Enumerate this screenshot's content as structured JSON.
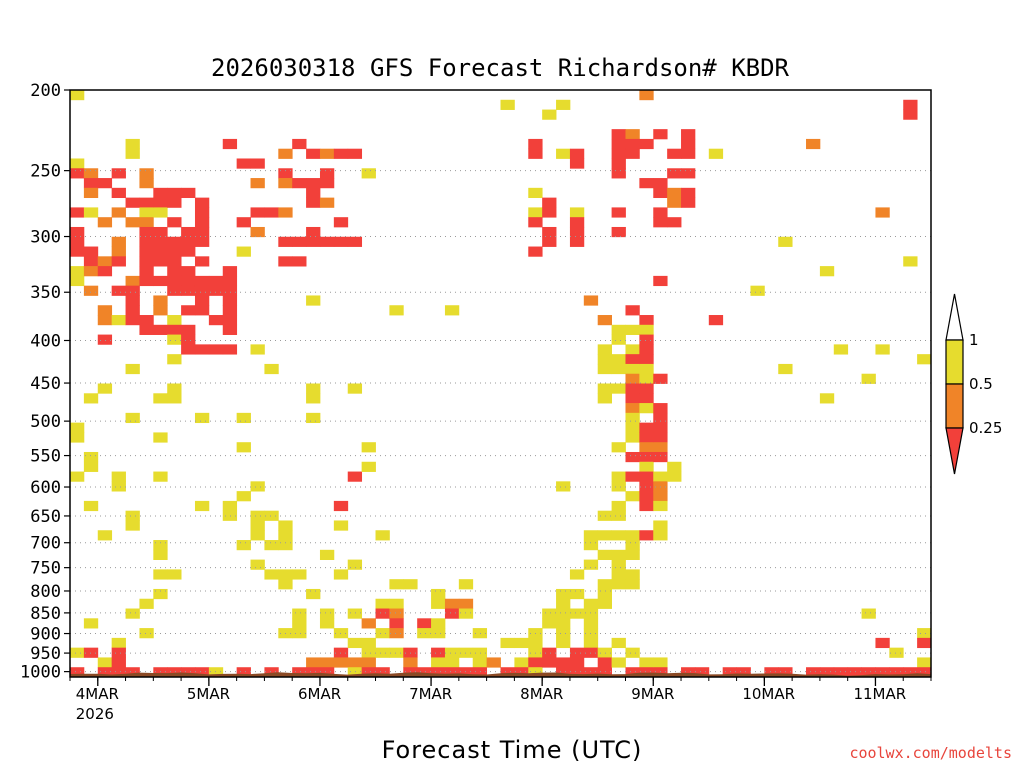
{
  "chart_data": {
    "type": "heatmap",
    "title": "2026030318 GFS Forecast Richardson# KBDR",
    "xlabel": "Forecast Time (UTC)",
    "ylabel": "",
    "credit": "coolwx.com/modelts",
    "x_ticks": [
      {
        "label": "4MAR",
        "sub": "2026",
        "t": 6
      },
      {
        "label": "5MAR",
        "sub": "",
        "t": 30
      },
      {
        "label": "6MAR",
        "sub": "",
        "t": 54
      },
      {
        "label": "7MAR",
        "sub": "",
        "t": 78
      },
      {
        "label": "8MAR",
        "sub": "",
        "t": 102
      },
      {
        "label": "9MAR",
        "sub": "",
        "t": 126
      },
      {
        "label": "10MAR",
        "sub": "",
        "t": 150
      },
      {
        "label": "11MAR",
        "sub": "",
        "t": 174
      }
    ],
    "xlim": [
      0,
      186
    ],
    "y_ticks": [
      200,
      250,
      300,
      350,
      400,
      450,
      500,
      550,
      600,
      650,
      700,
      750,
      800,
      850,
      900,
      950,
      1000
    ],
    "ylim_hpa": [
      200,
      1015
    ],
    "y_scale": "log-pressure",
    "colors": {
      "low": "#f2403a",
      "mid": "#f08428",
      "high": "#e6dc2e",
      "ground": "#8b4a25"
    },
    "legend": {
      "levels": [
        "1",
        "0.5",
        "0.25"
      ],
      "bins": [
        {
          "label": "> 1",
          "color": "#ffffff"
        },
        {
          "label": "0.5 - 1",
          "color": "#e6dc2e"
        },
        {
          "label": "0.25 - 0.5",
          "color": "#f08428"
        },
        {
          "label": "< 0.25",
          "color": "#f2403a"
        }
      ]
    },
    "regions": [
      {
        "cat": "high",
        "t": [
          0,
          24
        ],
        "p": [
          200,
          980
        ],
        "d": 0.22
      },
      {
        "cat": "mid",
        "t": [
          0,
          22
        ],
        "p": [
          250,
          400
        ],
        "d": 0.32
      },
      {
        "cat": "low",
        "t": [
          0,
          22
        ],
        "p": [
          250,
          400
        ],
        "d": 0.3
      },
      {
        "cat": "low",
        "t": [
          16,
          30
        ],
        "p": [
          265,
          350
        ],
        "d": 0.7
      },
      {
        "cat": "low",
        "t": [
          20,
          36
        ],
        "p": [
          330,
          420
        ],
        "d": 0.45
      },
      {
        "cat": "mid",
        "t": [
          36,
          58
        ],
        "p": [
          230,
          300
        ],
        "d": 0.25
      },
      {
        "cat": "low",
        "t": [
          34,
          62
        ],
        "p": [
          230,
          330
        ],
        "d": 0.35
      },
      {
        "cat": "high",
        "t": [
          36,
          70
        ],
        "p": [
          300,
          820
        ],
        "d": 0.12
      },
      {
        "cat": "low",
        "t": [
          52,
          66
        ],
        "p": [
          450,
          650
        ],
        "d": 0.1
      },
      {
        "cat": "high",
        "t": [
          60,
          100
        ],
        "p": [
          200,
          550
        ],
        "d": 0.03
      },
      {
        "cat": "high",
        "t": [
          28,
          52
        ],
        "p": [
          400,
          800
        ],
        "d": 0.08
      },
      {
        "cat": "low",
        "t": [
          98,
          112
        ],
        "p": [
          220,
          320
        ],
        "d": 0.25
      },
      {
        "cat": "high",
        "t": [
          98,
          120
        ],
        "p": [
          200,
          330
        ],
        "d": 0.2
      },
      {
        "cat": "low",
        "t": [
          118,
          136
        ],
        "p": [
          220,
          300
        ],
        "d": 0.35
      },
      {
        "cat": "mid",
        "t": [
          118,
          132
        ],
        "p": [
          200,
          300
        ],
        "d": 0.15
      },
      {
        "cat": "high",
        "t": [
          128,
          150
        ],
        "p": [
          200,
          280
        ],
        "d": 0.12
      },
      {
        "cat": "high",
        "t": [
          112,
          150
        ],
        "p": [
          300,
          450
        ],
        "d": 0.08
      },
      {
        "cat": "mid",
        "t": [
          112,
          140
        ],
        "p": [
          330,
          420
        ],
        "d": 0.08
      },
      {
        "cat": "low",
        "t": [
          112,
          140
        ],
        "p": [
          330,
          420
        ],
        "d": 0.06
      },
      {
        "cat": "high",
        "t": [
          150,
          186
        ],
        "p": [
          200,
          500
        ],
        "d": 0.06
      },
      {
        "cat": "mid",
        "t": [
          150,
          186
        ],
        "p": [
          230,
          360
        ],
        "d": 0.05
      },
      {
        "cat": "low",
        "t": [
          180,
          186
        ],
        "p": [
          200,
          250
        ],
        "d": 0.2
      },
      {
        "cat": "high",
        "t": [
          0,
          186
        ],
        "p": [
          500,
          780
        ],
        "d": 0.015
      },
      {
        "cat": "high",
        "t": [
          56,
          90
        ],
        "p": [
          780,
          950
        ],
        "d": 0.35
      },
      {
        "cat": "mid",
        "t": [
          62,
          88
        ],
        "p": [
          820,
          920
        ],
        "d": 0.3
      },
      {
        "cat": "low",
        "t": [
          62,
          84
        ],
        "p": [
          840,
          920
        ],
        "d": 0.2
      },
      {
        "cat": "high",
        "t": [
          94,
          130
        ],
        "p": [
          910,
          1000
        ],
        "d": 0.4
      },
      {
        "cat": "low",
        "t": [
          100,
          124
        ],
        "p": [
          930,
          1000
        ],
        "d": 0.45
      },
      {
        "cat": "high",
        "t": [
          0,
          16
        ],
        "p": [
          880,
          985
        ],
        "d": 0.35
      },
      {
        "cat": "low",
        "t": [
          4,
          16
        ],
        "p": [
          930,
          985
        ],
        "d": 0.3
      },
      {
        "cat": "high",
        "t": [
          170,
          186
        ],
        "p": [
          850,
          1000
        ],
        "d": 0.3
      },
      {
        "cat": "low",
        "t": [
          174,
          186
        ],
        "p": [
          920,
          1000
        ],
        "d": 0.35
      }
    ],
    "bands": [
      {
        "cat": "high",
        "pts": [
          [
            120,
            400
          ],
          [
            124,
            500
          ],
          [
            126,
            570
          ],
          [
            125,
            620
          ],
          [
            122,
            680
          ],
          [
            117,
            760
          ],
          [
            112,
            830
          ],
          [
            106,
            880
          ]
        ],
        "w": 4,
        "dp": 0.025,
        "d": 0.55
      },
      {
        "cat": "low",
        "pts": [
          [
            124,
            380
          ],
          [
            126,
            460
          ],
          [
            126,
            560
          ],
          [
            124,
            640
          ],
          [
            121,
            700
          ]
        ],
        "w": 2,
        "dp": 0.02,
        "d": 0.45
      },
      {
        "cat": "mid",
        "pts": [
          [
            125,
            420
          ],
          [
            127,
            520
          ],
          [
            126,
            600
          ]
        ],
        "w": 2,
        "dp": 0.02,
        "d": 0.4
      },
      {
        "cat": "high",
        "pts": [
          [
            36,
            600
          ],
          [
            40,
            700
          ],
          [
            46,
            800
          ],
          [
            52,
            880
          ],
          [
            58,
            940
          ],
          [
            66,
            965
          ],
          [
            80,
            975
          ],
          [
            95,
            960
          ]
        ],
        "w": 3,
        "dp": 0.02,
        "d": 0.3
      },
      {
        "cat": "low",
        "pts": [
          [
            60,
            945
          ],
          [
            70,
            950
          ],
          [
            80,
            955
          ]
        ],
        "w": 3,
        "dp": 0.012,
        "d": 0.45
      },
      {
        "cat": "low",
        "pts": [
          [
            0,
            995
          ],
          [
            40,
            995
          ],
          [
            80,
            992
          ],
          [
            120,
            990
          ],
          [
            160,
            992
          ],
          [
            186,
            990
          ]
        ],
        "w": 2,
        "dp": 0.008,
        "d": 0.8
      },
      {
        "cat": "high",
        "pts": [
          [
            0,
            1000
          ],
          [
            186,
            1000
          ]
        ],
        "w": 1,
        "dp": 0.004,
        "d": 0.6
      },
      {
        "cat": "mid",
        "pts": [
          [
            52,
            985
          ],
          [
            92,
            985
          ]
        ],
        "w": 1,
        "dp": 0.006,
        "d": 0.5
      }
    ]
  }
}
